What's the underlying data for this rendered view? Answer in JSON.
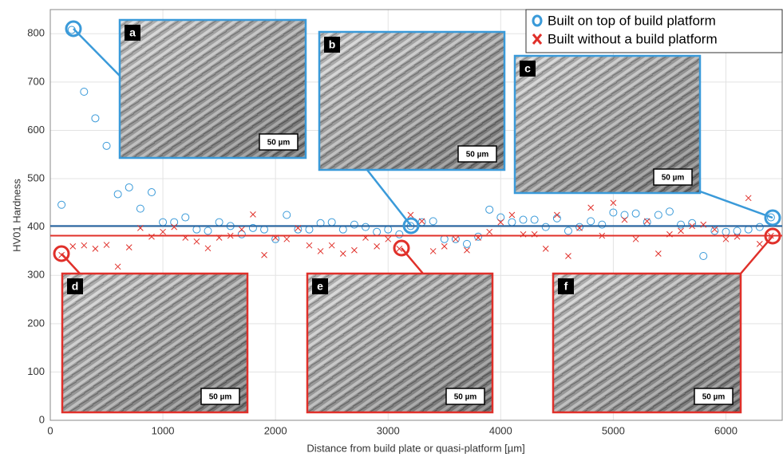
{
  "chart_data": {
    "type": "scatter",
    "x_label": "Distance from build plate or quasi-platform [µm]",
    "y_label": "HV01 Hardness",
    "xlim": [
      0,
      6500
    ],
    "ylim": [
      0,
      850
    ],
    "xticks": [
      0,
      1000,
      2000,
      3000,
      4000,
      5000,
      6000
    ],
    "yticks": [
      0,
      100,
      200,
      300,
      400,
      500,
      600,
      700,
      800
    ],
    "grid": true,
    "legend": "top-right",
    "series": [
      {
        "name": "Built on top of build platform",
        "color": "#3a9ad9",
        "marker": "circle",
        "x": [
          100,
          190,
          300,
          400,
          500,
          600,
          700,
          800,
          900,
          1000,
          1100,
          1200,
          1300,
          1400,
          1500,
          1600,
          1700,
          1800,
          1900,
          2000,
          2100,
          2200,
          2300,
          2400,
          2500,
          2600,
          2700,
          2800,
          2900,
          3000,
          3100,
          3200,
          3300,
          3400,
          3500,
          3600,
          3700,
          3800,
          3900,
          4000,
          4100,
          4200,
          4300,
          4400,
          4500,
          4600,
          4700,
          4800,
          4900,
          5000,
          5100,
          5200,
          5300,
          5400,
          5500,
          5600,
          5700,
          5800,
          5900,
          6000,
          6100,
          6200,
          6300,
          6400
        ],
        "values": [
          446,
          808,
          680,
          625,
          568,
          468,
          482,
          438,
          472,
          410,
          410,
          420,
          395,
          392,
          410,
          402,
          385,
          398,
          395,
          375,
          425,
          395,
          395,
          408,
          410,
          395,
          405,
          400,
          390,
          395,
          385,
          402,
          410,
          412,
          375,
          375,
          365,
          380,
          436,
          420,
          410,
          415,
          415,
          400,
          418,
          392,
          400,
          412,
          405,
          430,
          425,
          428,
          410,
          425,
          432,
          405,
          408,
          340,
          392,
          390,
          392,
          395,
          400,
          420
        ],
        "mean": 402,
        "mean_color": "#1f5f9e"
      },
      {
        "name": "Built without a build platform",
        "color": "#e0302a",
        "marker": "x",
        "x": [
          100,
          200,
          300,
          400,
          500,
          600,
          700,
          800,
          900,
          1000,
          1100,
          1200,
          1300,
          1400,
          1500,
          1600,
          1700,
          1800,
          1900,
          2000,
          2100,
          2200,
          2300,
          2400,
          2500,
          2600,
          2700,
          2800,
          2900,
          3000,
          3100,
          3200,
          3300,
          3400,
          3500,
          3600,
          3700,
          3800,
          3900,
          4000,
          4100,
          4200,
          4300,
          4400,
          4500,
          4600,
          4700,
          4800,
          4900,
          5000,
          5100,
          5200,
          5300,
          5400,
          5500,
          5600,
          5700,
          5800,
          5900,
          6000,
          6100,
          6200,
          6300,
          6400
        ],
        "values": [
          342,
          360,
          362,
          355,
          363,
          318,
          358,
          398,
          380,
          390,
          400,
          378,
          370,
          356,
          378,
          382,
          395,
          426,
          342,
          378,
          375,
          398,
          362,
          350,
          362,
          345,
          352,
          378,
          360,
          375,
          355,
          425,
          412,
          350,
          360,
          375,
          352,
          378,
          390,
          410,
          425,
          385,
          385,
          355,
          425,
          340,
          398,
          440,
          382,
          450,
          415,
          375,
          412,
          345,
          385,
          392,
          402,
          405,
          395,
          375,
          380,
          460,
          365,
          382
        ],
        "mean": 382,
        "mean_color": "#e0302a"
      }
    ],
    "insets": [
      {
        "label": "a",
        "scale": "50 µm",
        "series": 0
      },
      {
        "label": "b",
        "scale": "50 µm",
        "series": 0
      },
      {
        "label": "c",
        "scale": "50 µm",
        "series": 0
      },
      {
        "label": "d",
        "scale": "50 µm",
        "series": 1
      },
      {
        "label": "e",
        "scale": "50 µm",
        "series": 1
      },
      {
        "label": "f",
        "scale": "50 µm",
        "series": 1
      }
    ]
  }
}
